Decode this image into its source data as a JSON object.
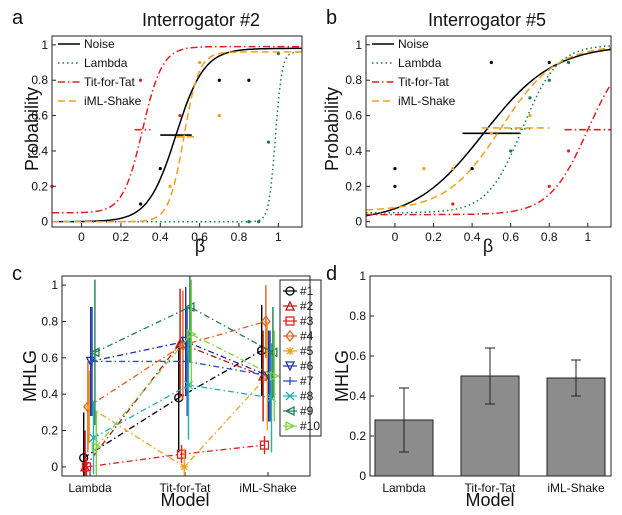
{
  "panels": {
    "a": {
      "label": "a",
      "title": "Interrogator #2",
      "xlabel": "β",
      "ylabel": "Probability"
    },
    "b": {
      "label": "b",
      "title": "Interrogator #5",
      "xlabel": "β",
      "ylabel": "Probability"
    },
    "c": {
      "label": "c",
      "xlabel": "Model",
      "ylabel": "MHLG"
    },
    "d": {
      "label": "d",
      "xlabel": "Model",
      "ylabel": "MHLG"
    }
  },
  "colors": {
    "noise": "#000000",
    "lambda": "#1a7a4a",
    "tft": "#e02020",
    "iml": "#f0a020",
    "bar": "#8c8c8c"
  },
  "chart_data": [
    {
      "id": "a",
      "type": "line",
      "title": "Interrogator #2",
      "xlabel": "β",
      "ylabel": "Probability",
      "xlim": [
        -0.15,
        1.12
      ],
      "ylim": [
        -0.03,
        1.05
      ],
      "xticks": [
        0,
        0.2,
        0.4,
        0.6,
        0.8,
        1
      ],
      "yticks": [
        0,
        0.2,
        0.4,
        0.6,
        0.8,
        1
      ],
      "legend_position": "top-left",
      "series": [
        {
          "name": "Noise",
          "key": "noise",
          "style": "solid",
          "mid": 0.48,
          "k": 14,
          "lo": 0.0,
          "hi": 0.98,
          "hbar": [
            0.4,
            0.56
          ]
        },
        {
          "name": "Lambda",
          "key": "lambda",
          "style": "dotted",
          "mid": 0.985,
          "k": 60,
          "lo": 0.0,
          "hi": 0.96,
          "hbar": null
        },
        {
          "name": "Tit-for-Tat",
          "key": "tft",
          "style": "dashdot",
          "mid": 0.31,
          "k": 20,
          "lo": 0.05,
          "hi": 0.99,
          "hbar": [
            0.27,
            0.35
          ]
        },
        {
          "name": "iML-Shake",
          "key": "iml",
          "style": "dashed",
          "mid": 0.52,
          "k": 26,
          "lo": 0.0,
          "hi": 0.96,
          "hbar": [
            0.48,
            0.58
          ]
        }
      ],
      "points": [
        {
          "key": "noise",
          "x": [
            0.3,
            0.4,
            0.7,
            0.85
          ],
          "y": [
            0.1,
            0.3,
            0.8,
            0.8
          ]
        },
        {
          "key": "lambda",
          "x": [
            0.85,
            0.9,
            0.95,
            1.0
          ],
          "y": [
            0.0,
            0.0,
            0.45,
            0.95
          ]
        },
        {
          "key": "tft",
          "x": [
            -0.15,
            0.3,
            0.5
          ],
          "y": [
            0.2,
            0.8,
            0.6
          ]
        },
        {
          "key": "iml",
          "x": [
            0.45,
            0.6,
            0.7
          ],
          "y": [
            0.2,
            0.9,
            0.6
          ]
        }
      ]
    },
    {
      "id": "b",
      "type": "line",
      "title": "Interrogator #5",
      "xlabel": "β",
      "ylabel": "Probability",
      "xlim": [
        -0.15,
        1.12
      ],
      "ylim": [
        -0.03,
        1.05
      ],
      "xticks": [
        0,
        0.2,
        0.4,
        0.6,
        0.8,
        1
      ],
      "yticks": [
        0,
        0.2,
        0.4,
        0.6,
        0.8,
        1
      ],
      "legend_position": "top-left",
      "series": [
        {
          "name": "Noise",
          "key": "noise",
          "style": "solid",
          "mid": 0.46,
          "k": 5.5,
          "lo": 0.0,
          "hi": 1.0,
          "hbar": [
            0.35,
            0.65
          ]
        },
        {
          "name": "Lambda",
          "key": "lambda",
          "style": "dotted",
          "mid": 0.66,
          "k": 11,
          "lo": 0.05,
          "hi": 1.0,
          "hbar": [
            0.6,
            0.7
          ]
        },
        {
          "name": "Tit-for-Tat",
          "key": "tft",
          "style": "dashdot",
          "mid": 1.0,
          "k": 10,
          "lo": 0.04,
          "hi": 1.0,
          "hbar": [
            0.88,
            1.12
          ]
        },
        {
          "name": "iML-Shake",
          "key": "iml",
          "style": "dashed",
          "mid": 0.55,
          "k": 7,
          "lo": 0.06,
          "hi": 1.0,
          "hbar": [
            0.45,
            0.8
          ]
        }
      ],
      "points": [
        {
          "key": "noise",
          "x": [
            0,
            0,
            0.4,
            0.5,
            0.8
          ],
          "y": [
            0.3,
            0.2,
            0.3,
            0.9,
            0.9
          ]
        },
        {
          "key": "lambda",
          "x": [
            0.6,
            0.7,
            0.8,
            0.9
          ],
          "y": [
            0.4,
            0.7,
            0.8,
            0.9
          ]
        },
        {
          "key": "tft",
          "x": [
            0.3,
            0.8,
            0.9
          ],
          "y": [
            0.1,
            0.2,
            0.4
          ]
        },
        {
          "key": "iml",
          "x": [
            0.15,
            0.3,
            0.5,
            0.7
          ],
          "y": [
            0.3,
            0.3,
            0.5,
            0.6
          ]
        }
      ]
    },
    {
      "id": "c",
      "type": "line",
      "xlabel": "Model",
      "ylabel": "MHLG",
      "categories": [
        "Lambda",
        "Tit-for-Tat",
        "iML-Shake"
      ],
      "ylim": [
        -0.05,
        1.05
      ],
      "yticks": [
        0,
        0.2,
        0.4,
        0.6,
        0.8,
        1
      ],
      "legend_position": "right",
      "series": [
        {
          "name": "#1",
          "color": "#000000",
          "marker": "o",
          "values": [
            0.05,
            0.38,
            0.64
          ],
          "err": [
            0.25,
            0.3,
            0.25
          ]
        },
        {
          "name": "#2",
          "color": "#c01010",
          "marker": "^",
          "values": [
            0.0,
            0.68,
            0.5
          ],
          "err": [
            0.2,
            0.3,
            0.25
          ]
        },
        {
          "name": "#3",
          "color": "#e02020",
          "marker": "s",
          "values": [
            0.0,
            0.07,
            0.12
          ],
          "err": [
            0.05,
            0.05,
            0.05
          ]
        },
        {
          "name": "#4",
          "color": "#e06020",
          "marker": "d",
          "values": [
            0.33,
            0.67,
            0.8
          ],
          "err": [
            0.25,
            0.3,
            0.2
          ]
        },
        {
          "name": "#5",
          "color": "#f0a020",
          "marker": "*",
          "values": [
            0.33,
            0.0,
            0.5
          ],
          "err": [
            0.2,
            0.1,
            0.3
          ]
        },
        {
          "name": "#6",
          "color": "#2030a0",
          "marker": "v",
          "values": [
            0.58,
            0.69,
            0.5
          ],
          "err": [
            0.3,
            0.3,
            0.25
          ]
        },
        {
          "name": "#7",
          "color": "#3050c0",
          "marker": "+",
          "values": [
            0.58,
            0.58,
            0.5
          ],
          "err": [
            0.3,
            0.3,
            0.25
          ]
        },
        {
          "name": "#8",
          "color": "#20b0b0",
          "marker": "x",
          "values": [
            0.16,
            0.45,
            0.38
          ],
          "err": [
            0.2,
            0.3,
            0.3
          ]
        },
        {
          "name": "#9",
          "color": "#208050",
          "marker": "<",
          "values": [
            0.63,
            0.88,
            0.63
          ],
          "err": [
            0.4,
            0.3,
            0.25
          ]
        },
        {
          "name": "#10",
          "color": "#80d040",
          "marker": ">",
          "values": [
            0.11,
            0.73,
            0.5
          ],
          "err": [
            0.2,
            0.3,
            0.25
          ]
        }
      ]
    },
    {
      "id": "d",
      "type": "bar",
      "xlabel": "Model",
      "ylabel": "MHLG",
      "categories": [
        "Lambda",
        "Tit-for-Tat",
        "iML-Shake"
      ],
      "values": [
        0.28,
        0.5,
        0.49
      ],
      "err": [
        0.16,
        0.14,
        0.09
      ],
      "ylim": [
        0,
        1
      ],
      "yticks": [
        0,
        0.2,
        0.4,
        0.6,
        0.8,
        1
      ]
    }
  ]
}
